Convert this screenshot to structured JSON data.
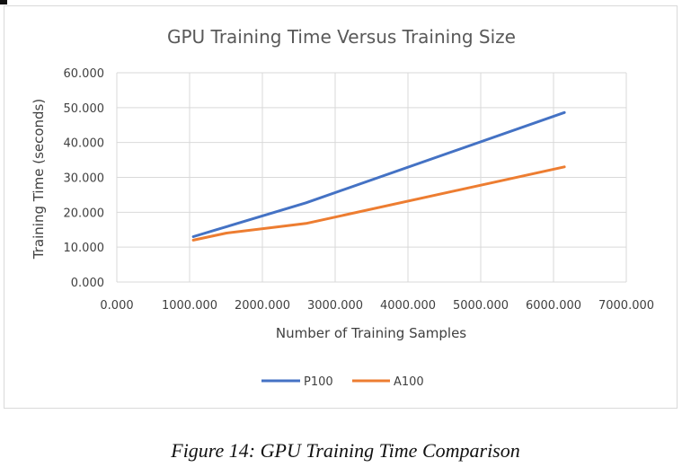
{
  "caption": "Figure 14: GPU Training Time Comparison",
  "chart_data": {
    "type": "line",
    "title": "GPU Training Time Versus Training Size",
    "xlabel": "Number of Training Samples",
    "ylabel": "Training Time (seconds)",
    "xlim": [
      0,
      7000
    ],
    "ylim": [
      0,
      60
    ],
    "x_ticks": [
      "0.000",
      "1000.000",
      "2000.000",
      "3000.000",
      "4000.000",
      "5000.000",
      "6000.000",
      "7000.000"
    ],
    "y_ticks": [
      "0.000",
      "10.000",
      "20.000",
      "30.000",
      "40.000",
      "50.000",
      "60.000"
    ],
    "grid": true,
    "legend_position": "bottom",
    "series": [
      {
        "name": "P100",
        "color": "#4472C4",
        "x": [
          1050,
          2600,
          6150
        ],
        "y": [
          13.0,
          22.7,
          48.6
        ]
      },
      {
        "name": "A100",
        "color": "#ED7D31",
        "x": [
          1050,
          1500,
          2600,
          6150
        ],
        "y": [
          12.0,
          14.0,
          16.8,
          33.0
        ]
      }
    ]
  }
}
